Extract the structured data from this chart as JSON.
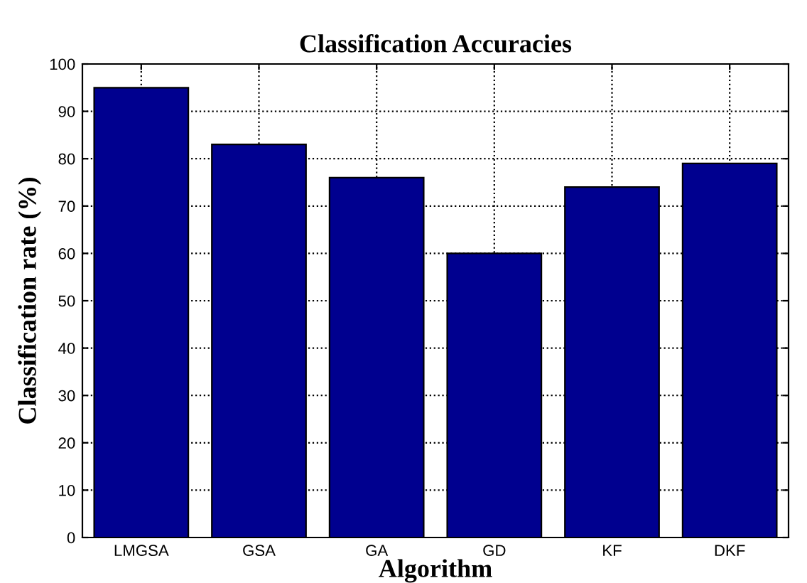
{
  "chart_data": {
    "type": "bar",
    "title": "Classification Accuracies",
    "xlabel": "Algorithm",
    "ylabel": "Classification rate (%)",
    "categories": [
      "LMGSA",
      "GSA",
      "GA",
      "GD",
      "KF",
      "DKF"
    ],
    "values": [
      95,
      83,
      76,
      60,
      74,
      79
    ],
    "color": "#00008f",
    "ylim": [
      0,
      100
    ],
    "yticks": [
      0,
      10,
      20,
      30,
      40,
      50,
      60,
      70,
      80,
      90,
      100
    ],
    "grid": true
  }
}
